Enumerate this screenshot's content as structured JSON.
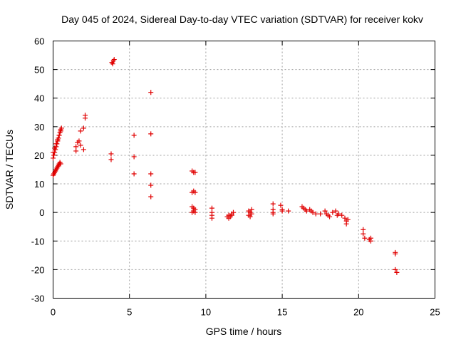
{
  "chart_data": {
    "type": "scatter",
    "title": "Day 045 of 2024, Sidereal Day-to-day VTEC variation (SDTVAR) for receiver kokv",
    "xlabel": "GPS time / hours",
    "ylabel": "SDTVAR / TECUs",
    "xlim": [
      0,
      25
    ],
    "ylim": [
      -30,
      60
    ],
    "xticks": [
      0,
      5,
      10,
      15,
      20,
      25
    ],
    "yticks": [
      -30,
      -20,
      -10,
      0,
      10,
      20,
      30,
      40,
      50,
      60
    ],
    "grid": true,
    "marker": "plus",
    "color": "#e00000",
    "series": [
      {
        "name": "SDTVAR",
        "points": [
          [
            0.0,
            13.0
          ],
          [
            0.05,
            13.5
          ],
          [
            0.1,
            14.0
          ],
          [
            0.15,
            14.5
          ],
          [
            0.2,
            15.0
          ],
          [
            0.25,
            15.5
          ],
          [
            0.3,
            16.0
          ],
          [
            0.35,
            16.5
          ],
          [
            0.4,
            17.0
          ],
          [
            0.45,
            17.5
          ],
          [
            0.5,
            17.0
          ],
          [
            0.0,
            19.0
          ],
          [
            0.05,
            20.0
          ],
          [
            0.1,
            21.0
          ],
          [
            0.15,
            22.0
          ],
          [
            0.2,
            23.0
          ],
          [
            0.25,
            24.0
          ],
          [
            0.3,
            25.0
          ],
          [
            0.35,
            26.0
          ],
          [
            0.4,
            27.0
          ],
          [
            0.45,
            28.0
          ],
          [
            0.5,
            29.0
          ],
          [
            0.55,
            29.5
          ],
          [
            0.0,
            21.0
          ],
          [
            0.1,
            22.5
          ],
          [
            0.2,
            24.0
          ],
          [
            0.3,
            25.5
          ],
          [
            0.4,
            27.0
          ],
          [
            0.5,
            28.5
          ],
          [
            1.5,
            21.5
          ],
          [
            1.5,
            23.0
          ],
          [
            1.6,
            24.5
          ],
          [
            1.7,
            25.0
          ],
          [
            1.8,
            23.5
          ],
          [
            1.8,
            28.5
          ],
          [
            2.0,
            29.5
          ],
          [
            2.0,
            22.0
          ],
          [
            2.1,
            33.0
          ],
          [
            2.1,
            34.0
          ],
          [
            3.8,
            18.5
          ],
          [
            3.8,
            20.5
          ],
          [
            3.9,
            52.0
          ],
          [
            3.95,
            53.0
          ],
          [
            4.0,
            53.5
          ],
          [
            3.85,
            52.5
          ],
          [
            5.3,
            27.0
          ],
          [
            5.3,
            19.5
          ],
          [
            5.3,
            13.5
          ],
          [
            6.4,
            42.0
          ],
          [
            6.4,
            27.5
          ],
          [
            6.4,
            13.5
          ],
          [
            6.4,
            9.5
          ],
          [
            6.4,
            5.5
          ],
          [
            9.1,
            14.5
          ],
          [
            9.2,
            14.0
          ],
          [
            9.3,
            14.0
          ],
          [
            9.1,
            7.0
          ],
          [
            9.2,
            7.5
          ],
          [
            9.3,
            7.0
          ],
          [
            9.1,
            2.0
          ],
          [
            9.2,
            1.5
          ],
          [
            9.3,
            1.0
          ],
          [
            9.1,
            0.0
          ],
          [
            9.2,
            0.5
          ],
          [
            9.3,
            0.0
          ],
          [
            10.4,
            1.5
          ],
          [
            10.4,
            0.0
          ],
          [
            10.4,
            -1.0
          ],
          [
            10.4,
            -2.0
          ],
          [
            11.4,
            -1.5
          ],
          [
            11.5,
            -1.0
          ],
          [
            11.6,
            -1.5
          ],
          [
            11.7,
            -0.5
          ],
          [
            11.8,
            0.0
          ],
          [
            11.5,
            -2.0
          ],
          [
            11.7,
            -1.0
          ],
          [
            12.8,
            0.5
          ],
          [
            12.9,
            0.0
          ],
          [
            13.0,
            1.0
          ],
          [
            12.8,
            -1.0
          ],
          [
            12.9,
            -1.5
          ],
          [
            13.0,
            -0.5
          ],
          [
            14.4,
            3.0
          ],
          [
            14.4,
            1.0
          ],
          [
            14.4,
            0.0
          ],
          [
            14.4,
            -0.5
          ],
          [
            14.9,
            2.5
          ],
          [
            15.0,
            1.0
          ],
          [
            15.0,
            0.5
          ],
          [
            15.4,
            0.5
          ],
          [
            16.3,
            2.0
          ],
          [
            16.4,
            1.5
          ],
          [
            16.5,
            1.0
          ],
          [
            16.6,
            0.5
          ],
          [
            16.8,
            1.0
          ],
          [
            16.9,
            0.5
          ],
          [
            17.0,
            0.0
          ],
          [
            17.2,
            -0.5
          ],
          [
            17.5,
            -0.5
          ],
          [
            17.8,
            0.5
          ],
          [
            17.9,
            -0.5
          ],
          [
            18.0,
            -1.0
          ],
          [
            18.1,
            -1.5
          ],
          [
            18.3,
            0.0
          ],
          [
            18.5,
            0.5
          ],
          [
            18.6,
            -1.0
          ],
          [
            18.7,
            -0.5
          ],
          [
            18.9,
            -1.0
          ],
          [
            19.1,
            -2.0
          ],
          [
            19.2,
            -3.0
          ],
          [
            19.2,
            -4.0
          ],
          [
            19.3,
            -2.5
          ],
          [
            20.3,
            -6.0
          ],
          [
            20.3,
            -7.5
          ],
          [
            20.4,
            -9.0
          ],
          [
            20.7,
            -9.5
          ],
          [
            20.8,
            -9.0
          ],
          [
            20.8,
            -10.0
          ],
          [
            22.4,
            -14.0
          ],
          [
            22.4,
            -14.5
          ],
          [
            22.4,
            -20.0
          ],
          [
            22.5,
            -21.0
          ]
        ]
      }
    ]
  }
}
